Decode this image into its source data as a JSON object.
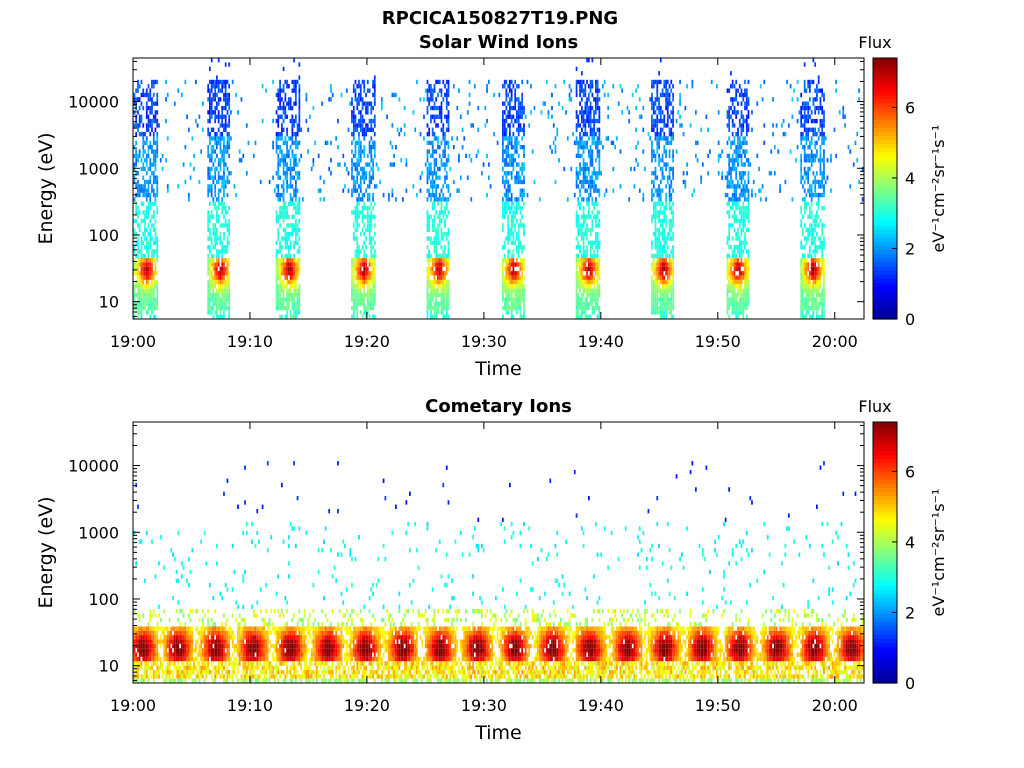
{
  "figure_title": "RPCICA150827T19.PNG",
  "colormap": [
    "#00008f",
    "#0000ff",
    "#0080ff",
    "#00ffff",
    "#80ff80",
    "#ffff00",
    "#ff8000",
    "#ff0000",
    "#800000"
  ],
  "chart_data": [
    {
      "type": "heatmap",
      "title": "Solar Wind Ions",
      "xlabel": "Time",
      "ylabel": "Energy (eV)",
      "x_ticks": [
        "19:00",
        "19:10",
        "19:20",
        "19:30",
        "19:40",
        "19:50",
        "20:00"
      ],
      "y_ticks": [
        "10",
        "100",
        "1000",
        "10000"
      ],
      "y_scale": "log",
      "ylim": [
        5.5,
        45000
      ],
      "xlim_minutes": [
        0,
        62.5
      ],
      "colorbar": {
        "title": "Flux",
        "unit": "eV⁻¹cm⁻²sr⁻¹s⁻¹",
        "ticks": [
          "0",
          "2",
          "4",
          "6"
        ],
        "range": [
          0,
          7.4
        ]
      },
      "scan_cycle_minutes": 6.4,
      "peak_energy_eV": 30,
      "peak_flux": 7,
      "scan_start_minutes": [
        0,
        6.3,
        12.2,
        18.6,
        25.0,
        31.4,
        37.8,
        44.2,
        50.6,
        57.0
      ]
    },
    {
      "type": "heatmap",
      "title": "Cometary Ions",
      "xlabel": "Time",
      "ylabel": "Energy (eV)",
      "x_ticks": [
        "19:00",
        "19:10",
        "19:20",
        "19:30",
        "19:40",
        "19:50",
        "20:00"
      ],
      "y_ticks": [
        "10",
        "100",
        "1000",
        "10000"
      ],
      "y_scale": "log",
      "ylim": [
        5.5,
        45000
      ],
      "xlim_minutes": [
        0,
        62.5
      ],
      "colorbar": {
        "title": "Flux",
        "unit": "eV⁻¹cm⁻²sr⁻¹s⁻¹",
        "ticks": [
          "0",
          "2",
          "4",
          "6"
        ],
        "range": [
          0,
          7.4
        ]
      },
      "peak_energy_eV": 18,
      "peak_flux": 7.3,
      "band_centers_minutes": [
        0.8,
        3.8,
        7.0,
        10.2,
        13.4,
        16.6,
        19.8,
        23.0,
        26.2,
        29.4,
        32.6,
        35.8,
        39.0,
        42.2,
        45.4,
        48.6,
        51.8,
        55.0,
        58.2,
        61.4
      ]
    }
  ]
}
